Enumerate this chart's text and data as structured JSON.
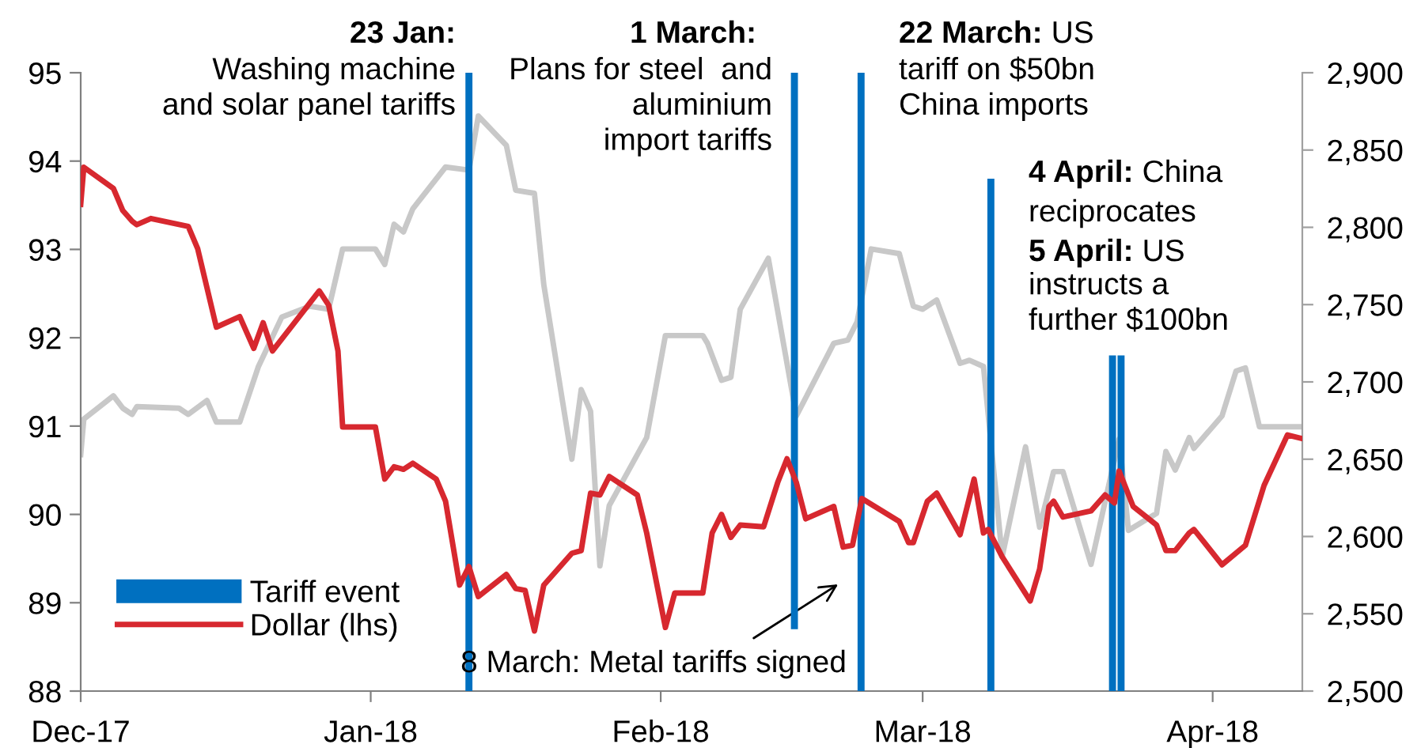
{
  "chart_data": {
    "type": "line",
    "annotations": [
      "23 Jan:",
      "Washing machine\nand solar panel tariffs",
      "1 March:",
      "Plans for steel  and\naluminium\nimport tariffs",
      "22 March:",
      "US",
      "tariff on $50bn\nChina imports",
      "4 April:",
      "China",
      "reciprocates",
      "5 April:",
      "US",
      "instructs a\nfurther $100bn",
      "8 March: Metal tariffs signed"
    ],
    "xlim": [
      "2017-12-01",
      "2018-04-10T14:00"
    ],
    "xticks": [
      {
        "value": "2017-12-01",
        "label": "Dec-17"
      },
      {
        "value": "2018-01-01",
        "label": "Jan-18"
      },
      {
        "value": "2018-02-01",
        "label": "Feb-18"
      },
      {
        "value": "2018-03-01",
        "label": "Mar-18"
      },
      {
        "value": "2018-04-01",
        "label": "Apr-18"
      }
    ],
    "ylim": [
      88,
      95
    ],
    "yticks": [
      88,
      89,
      90,
      91,
      92,
      93,
      94,
      95
    ],
    "y2lim": [
      2500,
      2900
    ],
    "y2ticks": [
      {
        "value": 2500,
        "label": "2,500"
      },
      {
        "value": 2550,
        "label": "2,550"
      },
      {
        "value": 2600,
        "label": "2,600"
      },
      {
        "value": 2650,
        "label": "2,650"
      },
      {
        "value": 2700,
        "label": "2,700"
      },
      {
        "value": 2750,
        "label": "2,750"
      },
      {
        "value": 2800,
        "label": "2,800"
      },
      {
        "value": 2850,
        "label": "2,850"
      },
      {
        "value": 2900,
        "label": "2,900"
      }
    ],
    "grid": false,
    "legend": "bottom left",
    "marker": "none",
    "line_style": "solid",
    "series": [
      {
        "name": "Tariff event",
        "type": "bar",
        "color": "#0070c0",
        "x": [
          "2018-01-11T12:00",
          "2018-02-15T07:00",
          "2018-02-22T10:00",
          "2018-03-08T07:00",
          "2018-03-21T07:00",
          "2018-03-22T05:00"
        ],
        "base": [
          88,
          88.7,
          88,
          88,
          88,
          88
        ],
        "values": [
          7,
          6.3,
          7,
          5.8,
          3.8,
          3.8
        ]
      },
      {
        "name": "Dollar (lhs)",
        "color": "#d7282f",
        "x": [
          "2017-12-01",
          "2017-12-01T08:00",
          "2017-12-04T12:00",
          "2017-12-05T12:00",
          "2017-12-06T12:00",
          "2017-12-07",
          "2017-12-08T12:00",
          "2017-12-12T12:00",
          "2017-12-13T12:00",
          "2017-12-15T12:00",
          "2017-12-18",
          "2017-12-19T12:00",
          "2017-12-20T12:00",
          "2017-12-21T12:00",
          "2017-12-24",
          "2017-12-26T12:00",
          "2017-12-27T12:00",
          "2017-12-28T12:00",
          "2017-12-29",
          "2018-01-01T12:00",
          "2018-01-02T12:00",
          "2018-01-03T12:00",
          "2018-01-04T12:00",
          "2018-01-05T12:00",
          "2018-01-08",
          "2018-01-09",
          "2018-01-10T12:00",
          "2018-01-11T12:00",
          "2018-01-12T12:00",
          "2018-01-15T12:00",
          "2018-01-16T12:00",
          "2018-01-17T12:00",
          "2018-01-18T12:00",
          "2018-01-19T12:00",
          "2018-01-22T12:00",
          "2018-01-23T12:00",
          "2018-01-24T12:00",
          "2018-01-25T12:00",
          "2018-01-26T12:00",
          "2018-01-29T12:00",
          "2018-01-30T12:00",
          "2018-02-01T12:00",
          "2018-02-02T12:00",
          "2018-02-05T12:00",
          "2018-02-06T12:00",
          "2018-02-07T12:00",
          "2018-02-08T12:00",
          "2018-02-09T12:00",
          "2018-02-12",
          "2018-02-13T12:00",
          "2018-02-14T12:00",
          "2018-02-15T12:00",
          "2018-02-16T12:00",
          "2018-02-19T12:00",
          "2018-02-20T12:00",
          "2018-02-21T12:00",
          "2018-02-22T12:00",
          "2018-02-26T12:00",
          "2018-02-27T12:00",
          "2018-02-28",
          "2018-03-01T12:00",
          "2018-03-02T12:00",
          "2018-03-05",
          "2018-03-06T12:00",
          "2018-03-07T12:00",
          "2018-03-08",
          "2018-03-09T12:00",
          "2018-03-12T12:00",
          "2018-03-13T12:00",
          "2018-03-14T12:00",
          "2018-03-15",
          "2018-03-16",
          "2018-03-19",
          "2018-03-20T12:00",
          "2018-03-21T12:00",
          "2018-03-22",
          "2018-03-23T12:00",
          "2018-03-26",
          "2018-03-27",
          "2018-03-28",
          "2018-03-29T12:00",
          "2018-03-30",
          "2018-04-02",
          "2018-04-04T12:00",
          "2018-04-06T12:00",
          "2018-04-09",
          "2018-04-10T12:00"
        ],
        "values": [
          93.51,
          93.93,
          93.69,
          93.44,
          93.32,
          93.28,
          93.35,
          93.26,
          93.01,
          92.12,
          92.24,
          91.88,
          92.17,
          91.85,
          92.19,
          92.53,
          92.37,
          91.85,
          90.99,
          90.99,
          90.4,
          90.54,
          90.51,
          90.58,
          90.4,
          90.15,
          89.2,
          89.41,
          89.07,
          89.32,
          89.16,
          89.14,
          88.68,
          89.2,
          89.56,
          89.59,
          90.24,
          90.22,
          90.43,
          90.22,
          89.79,
          88.72,
          89.11,
          89.11,
          89.79,
          90.0,
          89.74,
          89.88,
          89.86,
          90.36,
          90.63,
          90.36,
          89.95,
          90.09,
          89.63,
          89.65,
          90.18,
          89.92,
          89.68,
          89.68,
          90.15,
          90.24,
          89.77,
          90.4,
          89.79,
          89.83,
          89.52,
          89.02,
          89.38,
          90.09,
          90.15,
          89.97,
          90.04,
          90.22,
          90.13,
          90.49,
          90.09,
          89.88,
          89.59,
          89.59,
          89.79,
          89.83,
          89.43,
          89.65,
          90.33,
          90.9,
          90.86
        ]
      },
      {
        "axis": "y2",
        "color": "#c8c8c8",
        "x": [
          "2017-12-01",
          "2017-12-01T08:00",
          "2017-12-04T12:00",
          "2017-12-05T12:00",
          "2017-12-06T12:00",
          "2017-12-07",
          "2017-12-11T12:00",
          "2017-12-12T12:00",
          "2017-12-14T12:00",
          "2017-12-15T12:00",
          "2017-12-18",
          "2017-12-20",
          "2017-12-22T12:00",
          "2017-12-25T12:00",
          "2017-12-27T12:00",
          "2017-12-29",
          "2018-01-01T12:00",
          "2018-01-02T12:00",
          "2018-01-03T12:00",
          "2018-01-04T12:00",
          "2018-01-05T12:00",
          "2018-01-09",
          "2018-01-11T12:00",
          "2018-01-12T12:00",
          "2018-01-15T12:00",
          "2018-01-16T12:00",
          "2018-01-18T12:00",
          "2018-01-19T12:00",
          "2018-01-22T12:00",
          "2018-01-23T12:00",
          "2018-01-24T12:00",
          "2018-01-25T12:00",
          "2018-01-26T12:00",
          "2018-01-30T12:00",
          "2018-02-01T12:00",
          "2018-02-05T12:00",
          "2018-02-06",
          "2018-02-07T12:00",
          "2018-02-08T12:00",
          "2018-02-09T12:00",
          "2018-02-12T12:00",
          "2018-02-15T12:00",
          "2018-02-19T12:00",
          "2018-02-21",
          "2018-02-22",
          "2018-02-23T12:00",
          "2018-02-26T12:00",
          "2018-02-28",
          "2018-03-01",
          "2018-03-02T12:00",
          "2018-03-05",
          "2018-03-06",
          "2018-03-07T12:00",
          "2018-03-09T12:00",
          "2018-03-12",
          "2018-03-13T12:00",
          "2018-03-15",
          "2018-03-16",
          "2018-03-19",
          "2018-03-22",
          "2018-03-23",
          "2018-03-26",
          "2018-03-27",
          "2018-03-28",
          "2018-03-29T12:00",
          "2018-03-30",
          "2018-04-02",
          "2018-04-03T12:00",
          "2018-04-04T12:00",
          "2018-04-06",
          "2018-04-10T12:00"
        ],
        "values": [
          2653,
          2676,
          2691,
          2683,
          2679,
          2684,
          2683,
          2679,
          2688,
          2674,
          2674,
          2710,
          2742,
          2749,
          2747,
          2786,
          2786,
          2776,
          2802,
          2797,
          2812,
          2839,
          2837,
          2872,
          2853,
          2824,
          2822,
          2763,
          2650,
          2695,
          2681,
          2581,
          2620,
          2664,
          2730,
          2730,
          2725,
          2701,
          2703,
          2747,
          2780,
          2678,
          2725,
          2727,
          2739,
          2786,
          2783,
          2749,
          2747,
          2753,
          2712,
          2714,
          2710,
          2587,
          2658,
          2606,
          2642,
          2642,
          2582,
          2663,
          2604,
          2615,
          2655,
          2643,
          2664,
          2657,
          2678,
          2707,
          2709,
          2671,
          2671
        ]
      }
    ]
  }
}
